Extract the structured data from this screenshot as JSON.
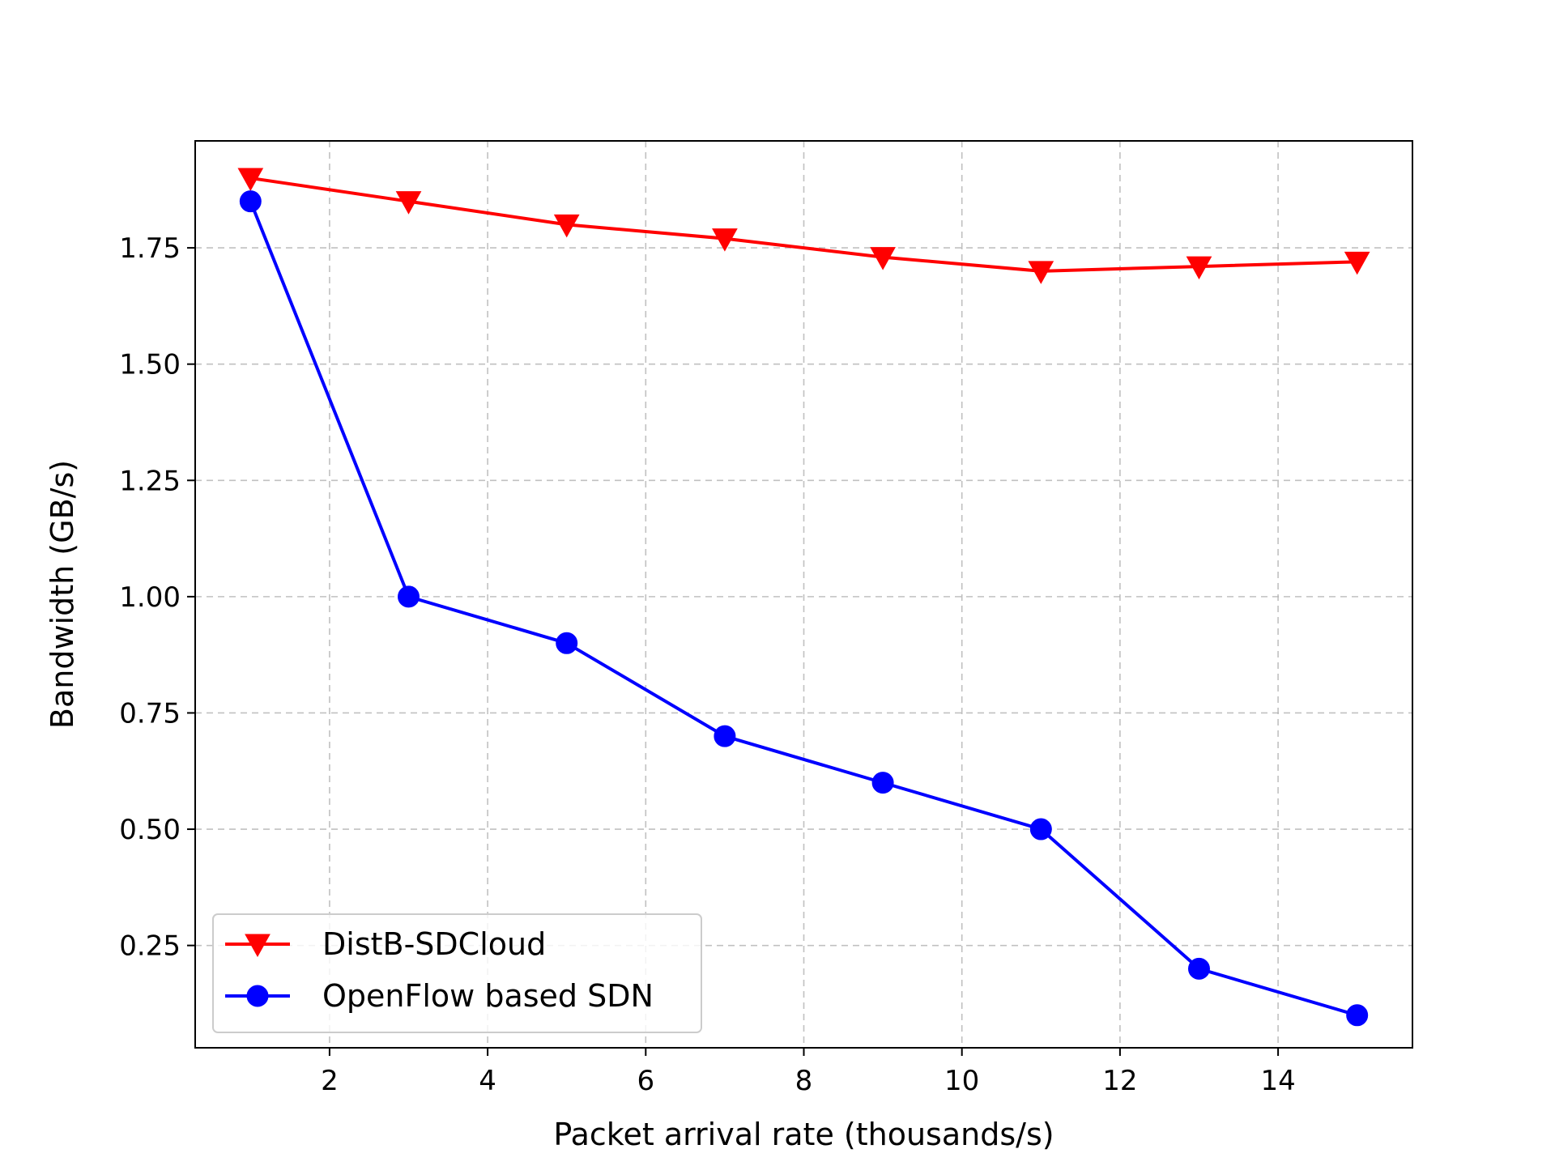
{
  "chart_data": {
    "type": "line",
    "title": "",
    "xlabel": "Packet arrival rate (thousands/s)",
    "ylabel": "Bandwidth (GB/s)",
    "xlim": [
      0.3,
      15.7
    ],
    "ylim": [
      0.03,
      1.98
    ],
    "xticks": [
      2,
      4,
      6,
      8,
      10,
      12,
      14
    ],
    "xtick_labels": [
      "2",
      "4",
      "6",
      "8",
      "10",
      "12",
      "14"
    ],
    "yticks": [
      0.25,
      0.5,
      0.75,
      1.0,
      1.25,
      1.5,
      1.75
    ],
    "ytick_labels": [
      "0.25",
      "0.50",
      "0.75",
      "1.00",
      "1.25",
      "1.50",
      "1.75"
    ],
    "grid": true,
    "legend_position": "lower-left",
    "series": [
      {
        "name": "DistB-SDCloud",
        "color": "#ff0000",
        "marker": "triangle-down",
        "x": [
          1,
          3,
          5,
          7,
          9,
          11,
          13,
          15
        ],
        "y": [
          1.9,
          1.85,
          1.8,
          1.77,
          1.73,
          1.7,
          1.71,
          1.72
        ]
      },
      {
        "name": "OpenFlow based SDN",
        "color": "#0000ff",
        "marker": "circle",
        "x": [
          1,
          3,
          5,
          7,
          9,
          11,
          13,
          15
        ],
        "y": [
          1.85,
          1.0,
          0.9,
          0.7,
          0.6,
          0.5,
          0.2,
          0.1
        ]
      }
    ]
  }
}
